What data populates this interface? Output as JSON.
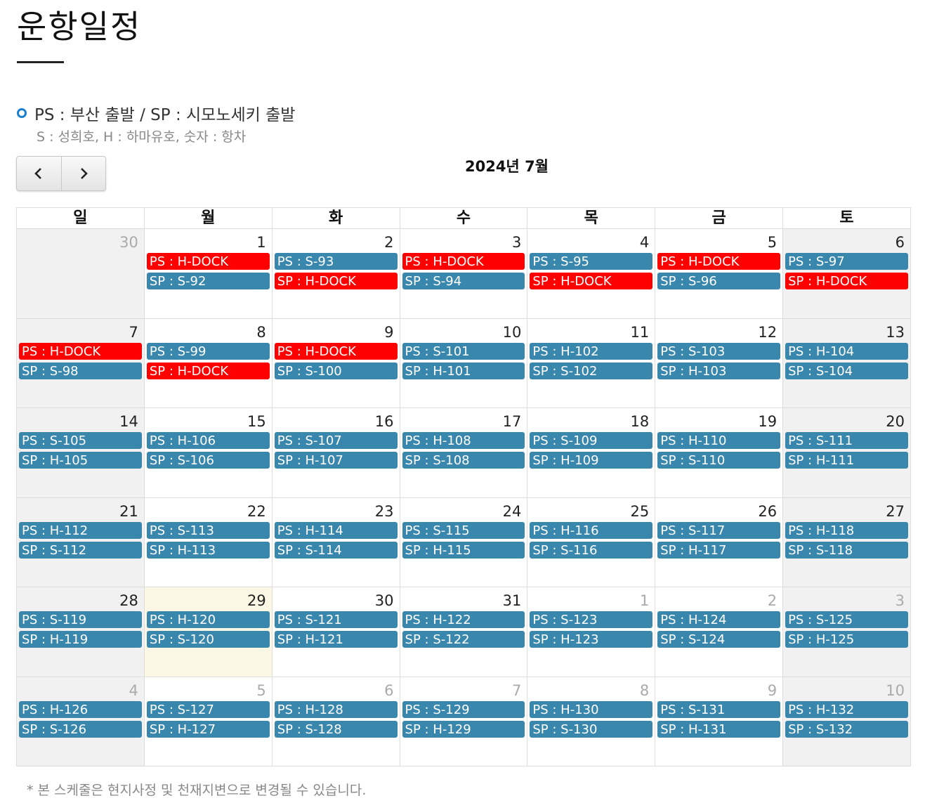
{
  "page_title": "운항일정",
  "legend": {
    "main": "PS : 부산 출발 / SP : 시모노세키 출발",
    "sub": "S : 성희호, H : 하마유호, 숫자 : 항차"
  },
  "nav": {
    "prev_icon": "chevron-left-icon",
    "next_icon": "chevron-right-icon"
  },
  "calendar_title": "2024년 7월",
  "weekdays": [
    "일",
    "월",
    "화",
    "수",
    "목",
    "금",
    "토"
  ],
  "colors": {
    "event": "#3a87ad",
    "dock": "#ff0000",
    "today": "#fcf7e4",
    "weekend": "#f1f1f1"
  },
  "weeks": [
    [
      {
        "day": "30",
        "other": true,
        "events": []
      },
      {
        "day": "1",
        "events": [
          {
            "label": "PS : H-DOCK",
            "dock": true
          },
          {
            "label": "SP : S-92"
          }
        ]
      },
      {
        "day": "2",
        "events": [
          {
            "label": "PS : S-93"
          },
          {
            "label": "SP : H-DOCK",
            "dock": true
          }
        ]
      },
      {
        "day": "3",
        "events": [
          {
            "label": "PS : H-DOCK",
            "dock": true
          },
          {
            "label": "SP : S-94"
          }
        ]
      },
      {
        "day": "4",
        "events": [
          {
            "label": "PS : S-95"
          },
          {
            "label": "SP : H-DOCK",
            "dock": true
          }
        ]
      },
      {
        "day": "5",
        "events": [
          {
            "label": "PS : H-DOCK",
            "dock": true
          },
          {
            "label": "SP : S-96"
          }
        ]
      },
      {
        "day": "6",
        "events": [
          {
            "label": "PS : S-97"
          },
          {
            "label": "SP : H-DOCK",
            "dock": true
          }
        ]
      }
    ],
    [
      {
        "day": "7",
        "events": [
          {
            "label": "PS : H-DOCK",
            "dock": true
          },
          {
            "label": "SP : S-98"
          }
        ]
      },
      {
        "day": "8",
        "events": [
          {
            "label": "PS : S-99"
          },
          {
            "label": "SP : H-DOCK",
            "dock": true
          }
        ]
      },
      {
        "day": "9",
        "events": [
          {
            "label": "PS : H-DOCK",
            "dock": true
          },
          {
            "label": "SP : S-100"
          }
        ]
      },
      {
        "day": "10",
        "events": [
          {
            "label": "PS : S-101"
          },
          {
            "label": "SP : H-101"
          }
        ]
      },
      {
        "day": "11",
        "events": [
          {
            "label": "PS : H-102"
          },
          {
            "label": "SP : S-102"
          }
        ]
      },
      {
        "day": "12",
        "events": [
          {
            "label": "PS : S-103"
          },
          {
            "label": "SP : H-103"
          }
        ]
      },
      {
        "day": "13",
        "events": [
          {
            "label": "PS : H-104"
          },
          {
            "label": "SP : S-104"
          }
        ]
      }
    ],
    [
      {
        "day": "14",
        "events": [
          {
            "label": "PS : S-105"
          },
          {
            "label": "SP : H-105"
          }
        ]
      },
      {
        "day": "15",
        "events": [
          {
            "label": "PS : H-106"
          },
          {
            "label": "SP : S-106"
          }
        ]
      },
      {
        "day": "16",
        "events": [
          {
            "label": "PS : S-107"
          },
          {
            "label": "SP : H-107"
          }
        ]
      },
      {
        "day": "17",
        "events": [
          {
            "label": "PS : H-108"
          },
          {
            "label": "SP : S-108"
          }
        ]
      },
      {
        "day": "18",
        "events": [
          {
            "label": "PS : S-109"
          },
          {
            "label": "SP : H-109"
          }
        ]
      },
      {
        "day": "19",
        "events": [
          {
            "label": "PS : H-110"
          },
          {
            "label": "SP : S-110"
          }
        ]
      },
      {
        "day": "20",
        "events": [
          {
            "label": "PS : S-111"
          },
          {
            "label": "SP : H-111"
          }
        ]
      }
    ],
    [
      {
        "day": "21",
        "events": [
          {
            "label": "PS : H-112"
          },
          {
            "label": "SP : S-112"
          }
        ]
      },
      {
        "day": "22",
        "events": [
          {
            "label": "PS : S-113"
          },
          {
            "label": "SP : H-113"
          }
        ]
      },
      {
        "day": "23",
        "events": [
          {
            "label": "PS : H-114"
          },
          {
            "label": "SP : S-114"
          }
        ]
      },
      {
        "day": "24",
        "events": [
          {
            "label": "PS : S-115"
          },
          {
            "label": "SP : H-115"
          }
        ]
      },
      {
        "day": "25",
        "events": [
          {
            "label": "PS : H-116"
          },
          {
            "label": "SP : S-116"
          }
        ]
      },
      {
        "day": "26",
        "events": [
          {
            "label": "PS : S-117"
          },
          {
            "label": "SP : H-117"
          }
        ]
      },
      {
        "day": "27",
        "events": [
          {
            "label": "PS : H-118"
          },
          {
            "label": "SP : S-118"
          }
        ]
      }
    ],
    [
      {
        "day": "28",
        "events": [
          {
            "label": "PS : S-119"
          },
          {
            "label": "SP : H-119"
          }
        ]
      },
      {
        "day": "29",
        "today": true,
        "events": [
          {
            "label": "PS : H-120"
          },
          {
            "label": "SP : S-120"
          }
        ]
      },
      {
        "day": "30",
        "events": [
          {
            "label": "PS : S-121"
          },
          {
            "label": "SP : H-121"
          }
        ]
      },
      {
        "day": "31",
        "events": [
          {
            "label": "PS : H-122"
          },
          {
            "label": "SP : S-122"
          }
        ]
      },
      {
        "day": "1",
        "other": true,
        "events": [
          {
            "label": "PS : S-123"
          },
          {
            "label": "SP : H-123"
          }
        ]
      },
      {
        "day": "2",
        "other": true,
        "events": [
          {
            "label": "PS : H-124"
          },
          {
            "label": "SP : S-124"
          }
        ]
      },
      {
        "day": "3",
        "other": true,
        "events": [
          {
            "label": "PS : S-125"
          },
          {
            "label": "SP : H-125"
          }
        ]
      }
    ],
    [
      {
        "day": "4",
        "other": true,
        "events": [
          {
            "label": "PS : H-126"
          },
          {
            "label": "SP : S-126"
          }
        ]
      },
      {
        "day": "5",
        "other": true,
        "events": [
          {
            "label": "PS : S-127"
          },
          {
            "label": "SP : H-127"
          }
        ]
      },
      {
        "day": "6",
        "other": true,
        "events": [
          {
            "label": "PS : H-128"
          },
          {
            "label": "SP : S-128"
          }
        ]
      },
      {
        "day": "7",
        "other": true,
        "events": [
          {
            "label": "PS : S-129"
          },
          {
            "label": "SP : H-129"
          }
        ]
      },
      {
        "day": "8",
        "other": true,
        "events": [
          {
            "label": "PS : H-130"
          },
          {
            "label": "SP : S-130"
          }
        ]
      },
      {
        "day": "9",
        "other": true,
        "events": [
          {
            "label": "PS : S-131"
          },
          {
            "label": "SP : H-131"
          }
        ]
      },
      {
        "day": "10",
        "other": true,
        "events": [
          {
            "label": "PS : H-132"
          },
          {
            "label": "SP : S-132"
          }
        ]
      }
    ]
  ],
  "footnote": "* 본 스케줄은 현지사정 및 천재지변으로 변경될 수 있습니다."
}
